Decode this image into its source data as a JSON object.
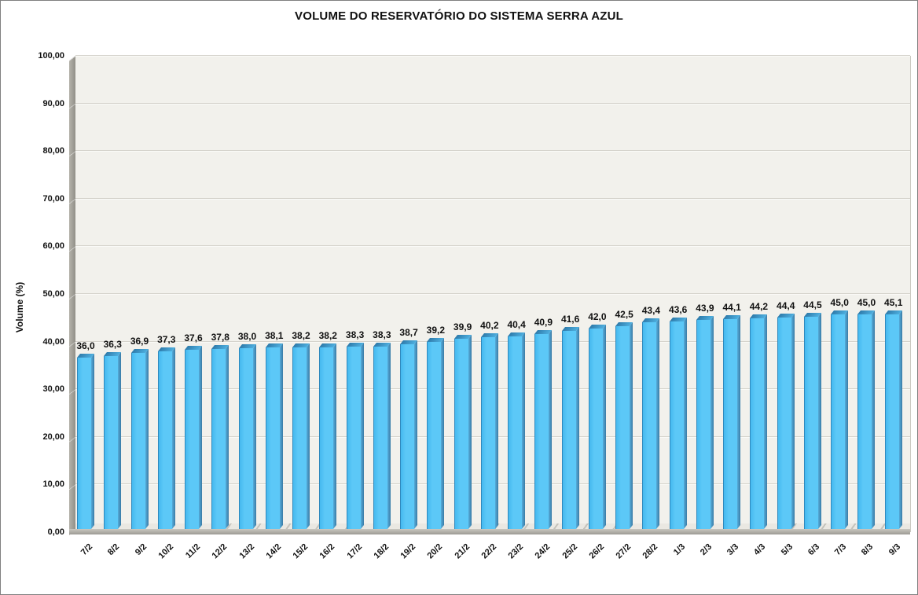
{
  "chart_data": {
    "type": "bar",
    "title": "VOLUME DO RESERVATÓRIO DO SISTEMA SERRA AZUL",
    "ylabel": "Volume (%)",
    "xlabel": "",
    "categories": [
      "7/2",
      "8/2",
      "9/2",
      "10/2",
      "11/2",
      "12/2",
      "13/2",
      "14/2",
      "15/2",
      "16/2",
      "17/2",
      "18/2",
      "19/2",
      "20/2",
      "21/2",
      "22/2",
      "23/2",
      "24/2",
      "25/2",
      "26/2",
      "27/2",
      "28/2",
      "1/3",
      "2/3",
      "3/3",
      "4/3",
      "5/3",
      "6/3",
      "7/3",
      "8/3",
      "9/3"
    ],
    "values": [
      36.0,
      36.3,
      36.9,
      37.3,
      37.6,
      37.8,
      38.0,
      38.1,
      38.2,
      38.2,
      38.3,
      38.3,
      38.7,
      39.2,
      39.9,
      40.2,
      40.4,
      40.9,
      41.6,
      42.0,
      42.5,
      43.4,
      43.6,
      43.9,
      44.1,
      44.2,
      44.4,
      44.5,
      45.0,
      45.0,
      45.1
    ],
    "value_labels": [
      "36,0",
      "36,3",
      "36,9",
      "37,3",
      "37,6",
      "37,8",
      "38,0",
      "38,1",
      "38,2",
      "38,2",
      "38,3",
      "38,3",
      "38,7",
      "39,2",
      "39,9",
      "40,2",
      "40,4",
      "40,9",
      "41,6",
      "42,0",
      "42,5",
      "43,4",
      "43,6",
      "43,9",
      "44,1",
      "44,2",
      "44,4",
      "44,5",
      "45,0",
      "45,0",
      "45,1"
    ],
    "y_tick_values": [
      0,
      10,
      20,
      30,
      40,
      50,
      60,
      70,
      80,
      90,
      100
    ],
    "y_tick_labels": [
      "0,00",
      "10,00",
      "20,00",
      "30,00",
      "40,00",
      "50,00",
      "60,00",
      "70,00",
      "80,00",
      "90,00",
      "100,00"
    ],
    "ylim": [
      0,
      100
    ],
    "grid": true,
    "legend": "none",
    "bar_face_color": "#5CC8F7",
    "bar_face_gradient_left": "#45B9EF",
    "bar_side_color_light": "#55ACDA",
    "bar_side_color_dark": "#3A7BA6",
    "bar_top_color_left": "#2E7BAB",
    "bar_top_color_right": "#4EAFDF",
    "bar_outline_color": "#2F89BD",
    "plot_bg": "#F2F1EC",
    "gridline_color": "#D5D3CC",
    "gridline_highlight": "#FAFAF7",
    "wall_color_light": "#B5B3AB",
    "wall_color_dark": "#918F88",
    "floor_top_color": "#EAE8E2",
    "floor_front_light": "#C9C7C0",
    "floor_front_dark": "#9D9B94",
    "text_color": "#111111"
  }
}
